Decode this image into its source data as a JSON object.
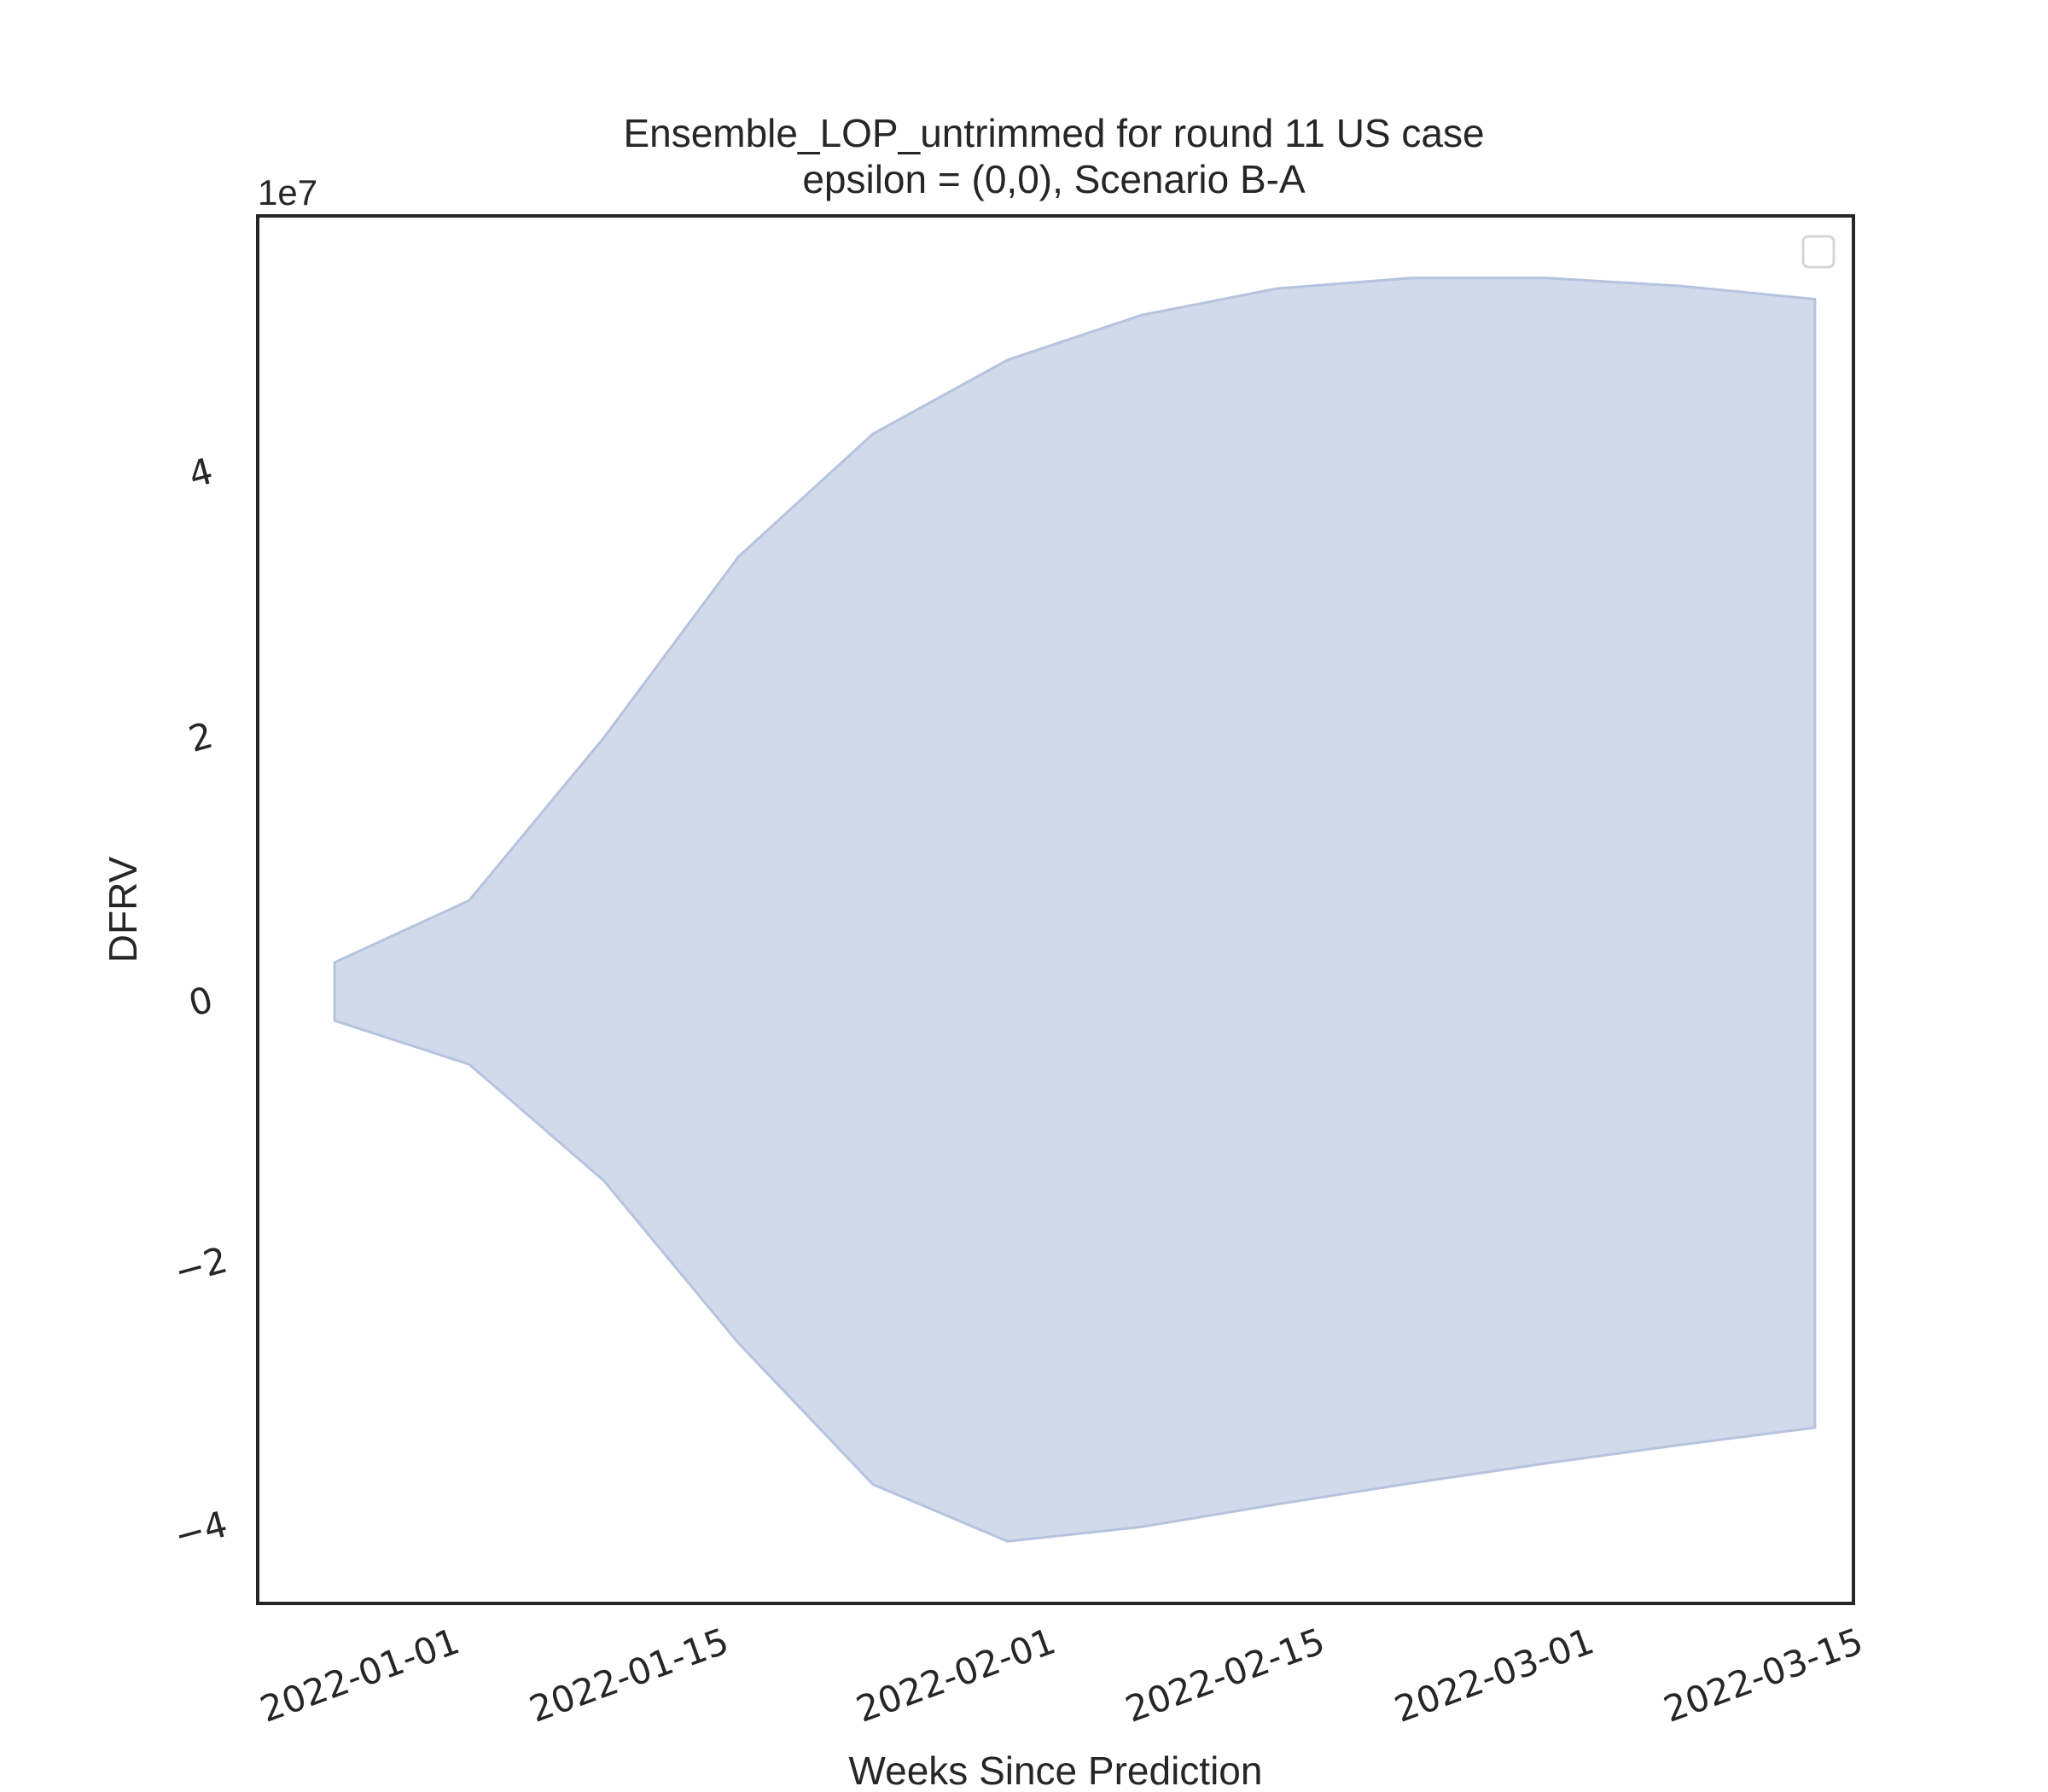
{
  "chart_data": {
    "type": "area",
    "title": "Ensemble_LOP_untrimmed for round 11 US case",
    "subtitle": "epsilon = (0,0), Scenario B-A",
    "xlabel": "Weeks Since Prediction",
    "ylabel": "DFRV",
    "y_offset_label": "1e7",
    "y_multiplier": 10000000,
    "x_ticks": [
      "2022-01-01",
      "2022-01-15",
      "2022-02-01",
      "2022-02-15",
      "2022-03-01",
      "2022-03-15"
    ],
    "y_ticks": [
      -4,
      -2,
      0,
      2,
      4
    ],
    "xlim": [
      "2021-12-22",
      "2022-03-15"
    ],
    "ylim": [
      -4.55,
      5.95
    ],
    "grid": false,
    "legend": "top-right (empty)",
    "band_color": "#d1daeb",
    "band_edge_color": "#b6c3df",
    "x": [
      "2021-12-26",
      "2022-01-02",
      "2022-01-09",
      "2022-01-16",
      "2022-01-23",
      "2022-01-30",
      "2022-02-06",
      "2022-02-13",
      "2022-02-20",
      "2022-02-27",
      "2022-03-06",
      "2022-03-13"
    ],
    "upper": [
      0.3,
      0.77,
      2.0,
      3.37,
      4.3,
      4.86,
      5.2,
      5.4,
      5.48,
      5.48,
      5.42,
      5.32
    ],
    "lower": [
      -0.14,
      -0.47,
      -1.35,
      -2.58,
      -3.65,
      -4.08,
      -3.97,
      -3.8,
      -3.64,
      -3.49,
      -3.35,
      -3.22
    ]
  }
}
